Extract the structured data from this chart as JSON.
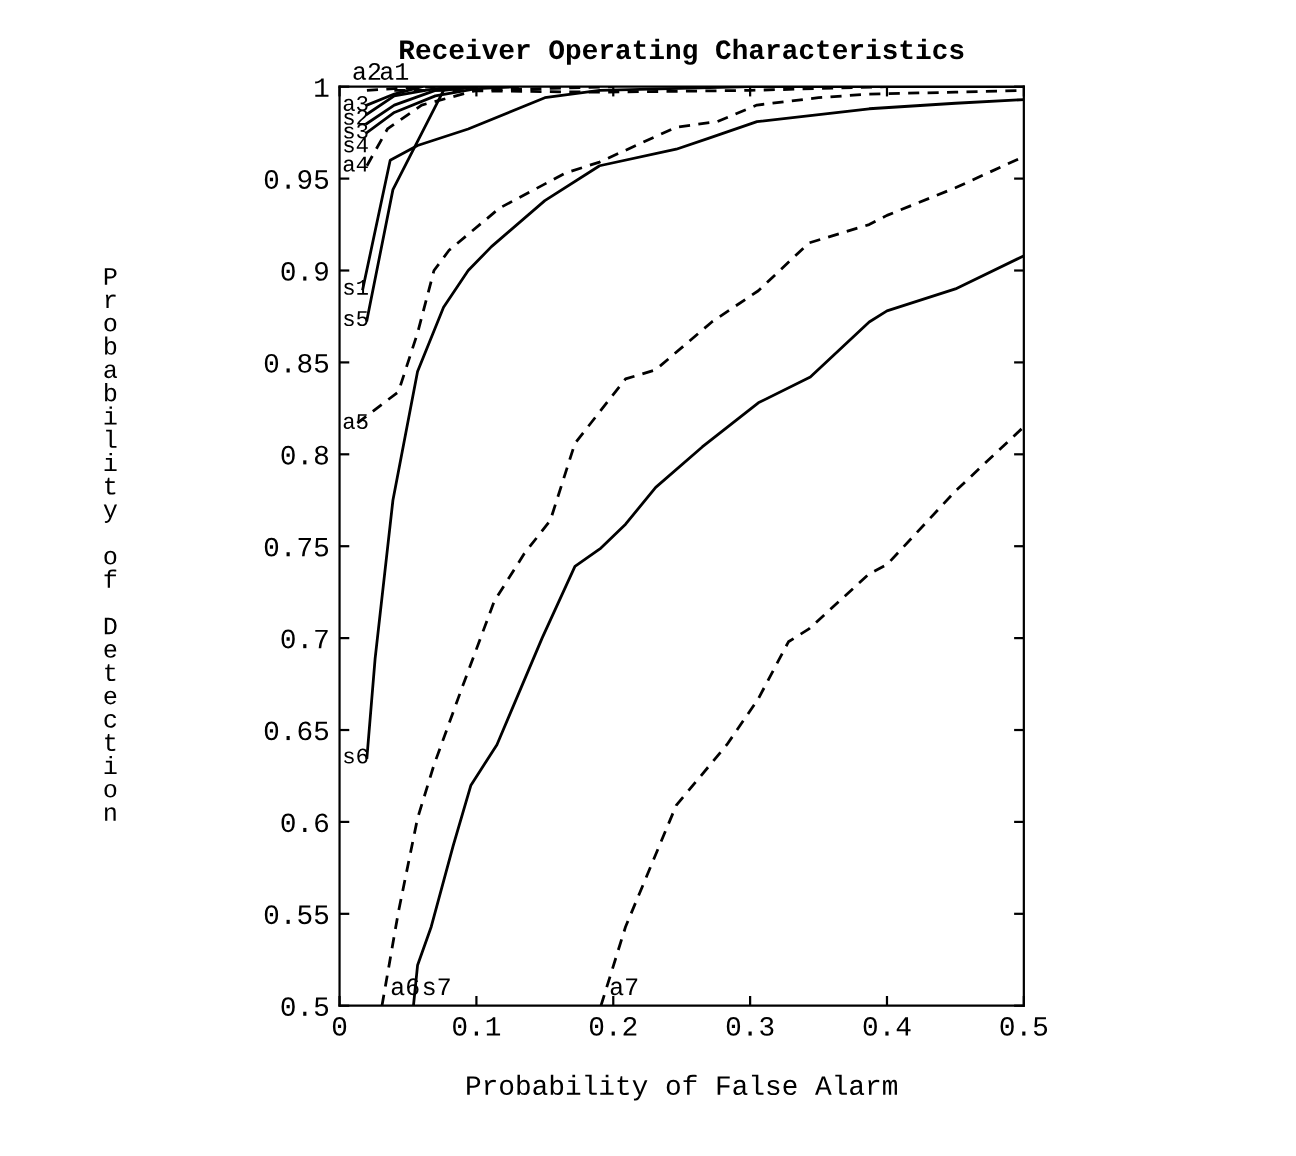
{
  "chart_data": {
    "type": "line",
    "title": "Receiver Operating Characteristics",
    "xlabel": "Probability of False Alarm",
    "ylabel": "Probability of Detection",
    "xlim": [
      0,
      0.5
    ],
    "ylim": [
      0.5,
      1
    ],
    "xticks": [
      0,
      0.1,
      0.2,
      0.3,
      0.4,
      0.5
    ],
    "yticks": [
      0.5,
      0.55,
      0.6,
      0.65,
      0.7,
      0.75,
      0.8,
      0.85,
      0.9,
      0.95,
      1
    ],
    "grid": false,
    "legend": false,
    "marker": "none",
    "series": [
      {
        "name": "a2",
        "color": "#000000",
        "line_style": "dashed",
        "x": [
          0.02,
          0.04,
          0.07
        ],
        "values": [
          0.998,
          0.999,
          1
        ]
      },
      {
        "name": "a1",
        "color": "#000000",
        "line_style": "dashed",
        "x": [
          0.04,
          0.07,
          0.19,
          0.3,
          0.4,
          0.5
        ],
        "values": [
          0.998,
          0.998,
          0.997,
          0.998,
          1,
          1
        ]
      },
      {
        "name": "a3",
        "color": "#000000",
        "line_style": "solid",
        "x": [
          0.02,
          0.04,
          0.06
        ],
        "values": [
          0.99,
          0.996,
          1
        ]
      },
      {
        "name": "s2",
        "color": "#000000",
        "line_style": "solid",
        "x": [
          0.02,
          0.04,
          0.07,
          0.1
        ],
        "values": [
          0.985,
          0.995,
          0.999,
          1
        ]
      },
      {
        "name": "s3",
        "color": "#000000",
        "line_style": "solid",
        "x": [
          0.02,
          0.04,
          0.07,
          0.1
        ],
        "values": [
          0.98,
          0.99,
          0.998,
          1
        ]
      },
      {
        "name": "s4",
        "color": "#000000",
        "line_style": "solid",
        "x": [
          0.02,
          0.04,
          0.07,
          0.1,
          0.13
        ],
        "values": [
          0.975,
          0.986,
          0.995,
          0.999,
          1
        ]
      },
      {
        "name": "a4",
        "color": "#000000",
        "line_style": "dashed",
        "x": [
          0.02,
          0.035,
          0.06,
          0.1,
          0.2
        ],
        "values": [
          0.957,
          0.977,
          0.99,
          0.998,
          1
        ]
      },
      {
        "name": "s1",
        "color": "#000000",
        "line_style": "solid",
        "x": [
          0.017,
          0.037,
          0.057,
          0.094,
          0.15,
          0.19,
          0.3,
          0.5
        ],
        "values": [
          0.89,
          0.96,
          0.968,
          0.977,
          0.994,
          0.998,
          1,
          1
        ]
      },
      {
        "name": "s5",
        "color": "#000000",
        "line_style": "solid",
        "x": [
          0.02,
          0.039,
          0.076,
          0.1
        ],
        "values": [
          0.873,
          0.944,
          0.998,
          1
        ]
      },
      {
        "name": "a5",
        "color": "#000000",
        "line_style": "dashed",
        "x": [
          0.013,
          0.043,
          0.057,
          0.069,
          0.08,
          0.117,
          0.165,
          0.19,
          0.246,
          0.276,
          0.305,
          0.35,
          0.387,
          0.45,
          0.5
        ],
        "values": [
          0.817,
          0.834,
          0.866,
          0.9,
          0.911,
          0.934,
          0.953,
          0.959,
          0.978,
          0.981,
          0.99,
          0.994,
          0.996,
          0.997,
          0.998
        ]
      },
      {
        "name": "s6",
        "color": "#000000",
        "line_style": "solid",
        "x": [
          0.02,
          0.026,
          0.039,
          0.057,
          0.076,
          0.094,
          0.111,
          0.15,
          0.19,
          0.246,
          0.27,
          0.305,
          0.387,
          0.45,
          0.5
        ],
        "values": [
          0.635,
          0.689,
          0.775,
          0.845,
          0.88,
          0.9,
          0.913,
          0.938,
          0.957,
          0.966,
          0.972,
          0.981,
          0.988,
          0.991,
          0.993
        ]
      },
      {
        "name": "a6",
        "color": "#000000",
        "line_style": "dashed",
        "x": [
          0.031,
          0.043,
          0.057,
          0.069,
          0.089,
          0.113,
          0.135,
          0.154,
          0.172,
          0.209,
          0.231,
          0.272,
          0.306,
          0.343,
          0.387,
          0.4,
          0.45,
          0.5
        ],
        "values": [
          0.5,
          0.551,
          0.602,
          0.631,
          0.672,
          0.72,
          0.746,
          0.764,
          0.806,
          0.841,
          0.846,
          0.872,
          0.889,
          0.915,
          0.925,
          0.93,
          0.945,
          0.962
        ]
      },
      {
        "name": "s7",
        "color": "#000000",
        "line_style": "solid",
        "x": [
          0.054,
          0.057,
          0.067,
          0.083,
          0.096,
          0.115,
          0.148,
          0.172,
          0.191,
          0.209,
          0.231,
          0.265,
          0.306,
          0.344,
          0.387,
          0.4,
          0.45,
          0.5
        ],
        "values": [
          0.5,
          0.522,
          0.543,
          0.587,
          0.62,
          0.642,
          0.7,
          0.739,
          0.749,
          0.762,
          0.782,
          0.804,
          0.828,
          0.842,
          0.872,
          0.878,
          0.89,
          0.908
        ]
      },
      {
        "name": "a7",
        "color": "#000000",
        "line_style": "dashed",
        "x": [
          0.191,
          0.209,
          0.246,
          0.283,
          0.306,
          0.328,
          0.343,
          0.387,
          0.4,
          0.45,
          0.5
        ],
        "values": [
          0.5,
          0.543,
          0.609,
          0.642,
          0.667,
          0.698,
          0.705,
          0.735,
          0.74,
          0.78,
          0.815
        ]
      }
    ]
  }
}
